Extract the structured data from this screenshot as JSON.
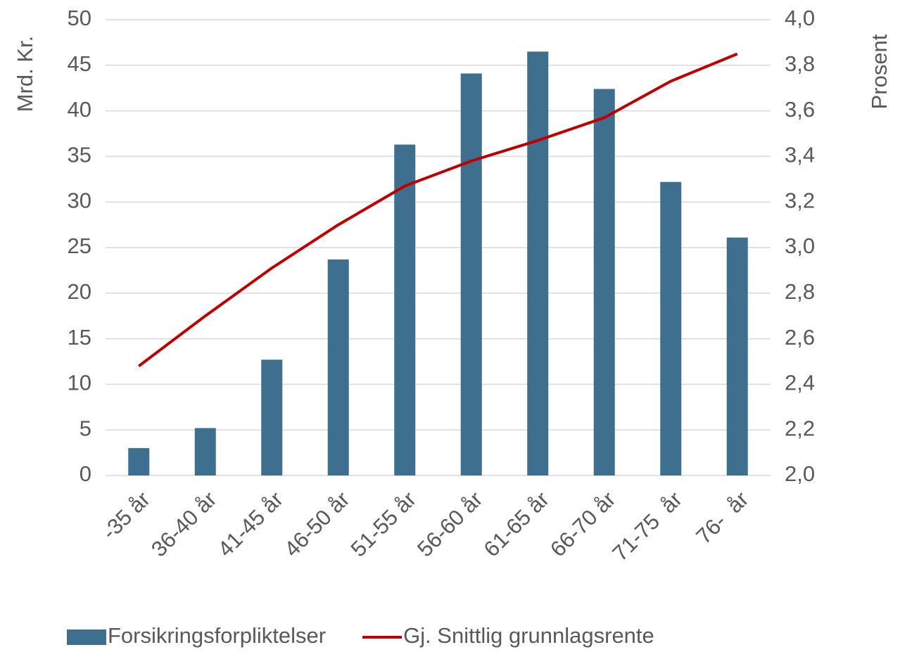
{
  "chart_data": {
    "type": "bar_line",
    "categories": [
      "-35 år",
      "36-40 år",
      "41-45 år",
      "46-50 år",
      "51-55 år",
      "56-60 år",
      "61-65 år",
      "66-70 år",
      "71-75  år",
      "76-  år"
    ],
    "series": [
      {
        "name": "Forsikringsforpliktelser",
        "type": "bar",
        "color": "#3e6f8f",
        "values": [
          3.0,
          5.2,
          12.7,
          23.7,
          36.3,
          44.1,
          46.5,
          42.4,
          32.2,
          26.1
        ]
      },
      {
        "name": "Gj. Snittlig grunnlagsrente",
        "type": "line",
        "axis": "y2",
        "color": "#c00000",
        "values": [
          2.48,
          2.7,
          2.91,
          3.1,
          3.27,
          3.38,
          3.47,
          3.57,
          3.73,
          3.85
        ]
      }
    ],
    "ylabel": "Mrd. Kr.",
    "y2label": "Prosent",
    "ylim": [
      0,
      50
    ],
    "yticks": [
      0,
      5,
      10,
      15,
      20,
      25,
      30,
      35,
      40,
      45,
      50
    ],
    "y2lim": [
      2.0,
      4.0
    ],
    "y2ticks": [
      {
        "value": 2.0,
        "label": "2,0"
      },
      {
        "value": 2.2,
        "label": "2,2"
      },
      {
        "value": 2.4,
        "label": "2,4"
      },
      {
        "value": 2.6,
        "label": "2,6"
      },
      {
        "value": 2.8,
        "label": "2,8"
      },
      {
        "value": 3.0,
        "label": "3,0"
      },
      {
        "value": 3.2,
        "label": "3,2"
      },
      {
        "value": 3.4,
        "label": "3,4"
      },
      {
        "value": 3.6,
        "label": "3,6"
      },
      {
        "value": 3.8,
        "label": "3,8"
      },
      {
        "value": 4.0,
        "label": "4,0"
      }
    ],
    "grid": true,
    "legend": "bottom"
  }
}
